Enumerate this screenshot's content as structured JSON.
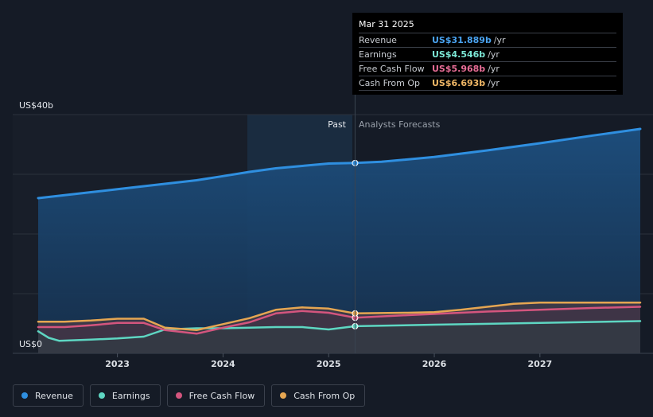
{
  "colors": {
    "revenue": "#2f8fe0",
    "earnings": "#5ed6c2",
    "fcf": "#d4557e",
    "cfo": "#e5a652",
    "background": "#151b26",
    "text": "#dde1e6",
    "muted": "#aab0b9"
  },
  "tooltip": {
    "date": "Mar 31 2025",
    "rows": [
      {
        "label": "Revenue",
        "value": "US$31.889b",
        "unit": "/yr",
        "color": "#4aa3f0"
      },
      {
        "label": "Earnings",
        "value": "US$4.546b",
        "unit": "/yr",
        "color": "#7ce8d6"
      },
      {
        "label": "Free Cash Flow",
        "value": "US$5.968b",
        "unit": "/yr",
        "color": "#e76d96"
      },
      {
        "label": "Cash From Op",
        "value": "US$6.693b",
        "unit": "/yr",
        "color": "#f0b766"
      }
    ]
  },
  "legend": [
    {
      "label": "Revenue",
      "color": "#2f8fe0"
    },
    {
      "label": "Earnings",
      "color": "#5ed6c2"
    },
    {
      "label": "Free Cash Flow",
      "color": "#d4557e"
    },
    {
      "label": "Cash From Op",
      "color": "#e5a652"
    }
  ],
  "chart_data": {
    "type": "area",
    "y_top_label": "US$40b",
    "y_bottom_label": "US$0",
    "ylim": [
      0,
      40
    ],
    "xlim": [
      2022.25,
      2027.95
    ],
    "x_ticks": [
      2023,
      2024,
      2025,
      2026,
      2027
    ],
    "x_tick_labels": [
      "2023",
      "2024",
      "2025",
      "2026",
      "2027"
    ],
    "divider_x": 2025.25,
    "highlight_start_x": 2024.25,
    "past_label": "Past",
    "forecast_label": "Analysts Forecasts",
    "grid": true,
    "series": [
      {
        "name": "Revenue",
        "key": "revenue",
        "past": [
          [
            2022.25,
            26.0
          ],
          [
            2022.5,
            26.5
          ],
          [
            2022.75,
            27.0
          ],
          [
            2023.0,
            27.5
          ],
          [
            2023.25,
            28.0
          ],
          [
            2023.5,
            28.5
          ],
          [
            2023.75,
            29.0
          ],
          [
            2024.0,
            29.7
          ],
          [
            2024.25,
            30.4
          ],
          [
            2024.5,
            31.0
          ],
          [
            2024.75,
            31.4
          ],
          [
            2025.0,
            31.8
          ],
          [
            2025.25,
            31.889
          ]
        ],
        "forecast": [
          [
            2025.25,
            31.889
          ],
          [
            2025.5,
            32.1
          ],
          [
            2026.0,
            32.9
          ],
          [
            2026.5,
            34.0
          ],
          [
            2027.0,
            35.2
          ],
          [
            2027.5,
            36.5
          ],
          [
            2027.95,
            37.6
          ]
        ]
      },
      {
        "name": "Earnings",
        "key": "earnings",
        "past": [
          [
            2022.25,
            3.7
          ],
          [
            2022.35,
            2.6
          ],
          [
            2022.45,
            2.1
          ],
          [
            2022.75,
            2.3
          ],
          [
            2023.0,
            2.5
          ],
          [
            2023.25,
            2.8
          ],
          [
            2023.45,
            4.0
          ],
          [
            2023.75,
            4.2
          ],
          [
            2024.0,
            4.2
          ],
          [
            2024.5,
            4.4
          ],
          [
            2024.75,
            4.4
          ],
          [
            2025.0,
            4.0
          ],
          [
            2025.25,
            4.546
          ]
        ],
        "forecast": [
          [
            2025.25,
            4.546
          ],
          [
            2026.0,
            4.8
          ],
          [
            2027.0,
            5.1
          ],
          [
            2027.95,
            5.4
          ]
        ]
      },
      {
        "name": "Free Cash Flow",
        "key": "fcf",
        "past": [
          [
            2022.25,
            4.4
          ],
          [
            2022.5,
            4.4
          ],
          [
            2022.75,
            4.7
          ],
          [
            2023.0,
            5.1
          ],
          [
            2023.25,
            5.1
          ],
          [
            2023.45,
            3.9
          ],
          [
            2023.75,
            3.3
          ],
          [
            2024.0,
            4.3
          ],
          [
            2024.25,
            5.2
          ],
          [
            2024.5,
            6.7
          ],
          [
            2024.75,
            7.1
          ],
          [
            2025.0,
            6.8
          ],
          [
            2025.25,
            5.968
          ]
        ],
        "forecast": [
          [
            2025.25,
            5.968
          ],
          [
            2025.75,
            6.4
          ],
          [
            2026.0,
            6.6
          ],
          [
            2026.5,
            7.0
          ],
          [
            2027.0,
            7.3
          ],
          [
            2027.5,
            7.6
          ],
          [
            2027.95,
            7.8
          ]
        ]
      },
      {
        "name": "Cash From Op",
        "key": "cfo",
        "past": [
          [
            2022.25,
            5.3
          ],
          [
            2022.5,
            5.3
          ],
          [
            2022.75,
            5.5
          ],
          [
            2023.0,
            5.8
          ],
          [
            2023.25,
            5.8
          ],
          [
            2023.45,
            4.3
          ],
          [
            2023.75,
            3.9
          ],
          [
            2024.0,
            4.9
          ],
          [
            2024.25,
            5.9
          ],
          [
            2024.5,
            7.3
          ],
          [
            2024.75,
            7.7
          ],
          [
            2025.0,
            7.5
          ],
          [
            2025.25,
            6.693
          ]
        ],
        "forecast": [
          [
            2025.25,
            6.693
          ],
          [
            2025.75,
            6.8
          ],
          [
            2026.0,
            6.9
          ],
          [
            2026.25,
            7.3
          ],
          [
            2026.75,
            8.3
          ],
          [
            2027.0,
            8.5
          ],
          [
            2027.5,
            8.5
          ],
          [
            2027.95,
            8.5
          ]
        ]
      }
    ]
  }
}
